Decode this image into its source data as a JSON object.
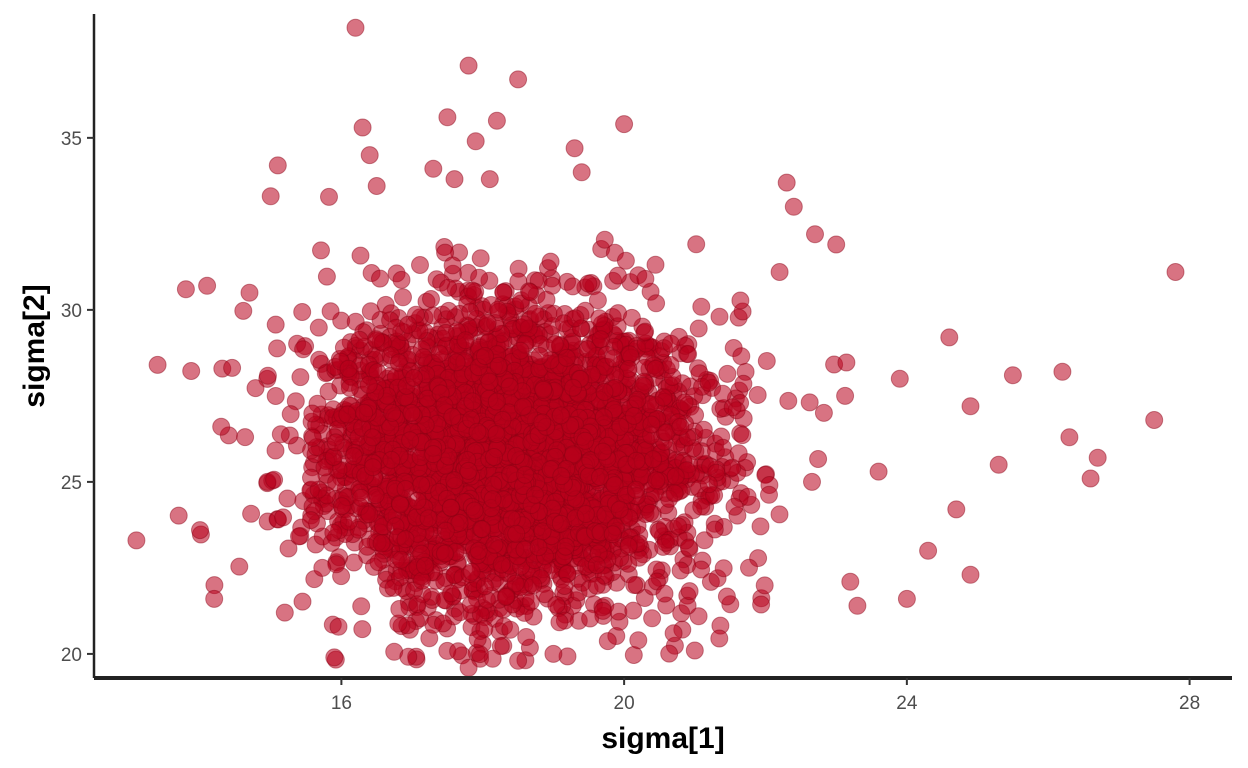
{
  "chart_data": {
    "type": "scatter",
    "title": "",
    "xlabel": "sigma[1]",
    "ylabel": "sigma[2]",
    "xlim": [
      12.5,
      28.6
    ],
    "ylim": [
      19.3,
      38.6
    ],
    "xticks": [
      16,
      20,
      24,
      28
    ],
    "yticks": [
      20,
      25,
      30,
      35
    ],
    "grid": false,
    "legend": "none",
    "point_color": "#B8001C",
    "point_opacity": 0.55,
    "series": [
      {
        "n_bulk_points": 4000,
        "bulk_center": {
          "x": 18.4,
          "y": 25.8
        },
        "bulk_sd": {
          "x": 1.3,
          "y": 2.1
        },
        "x": [
          16.2,
          17.8,
          18.5,
          17.5,
          18.2,
          20.0,
          16.3,
          19.3,
          16.4,
          15.1,
          13.1,
          13.4,
          13.8,
          14.1,
          14.2,
          14.0,
          14.7,
          15.0,
          14.3,
          15.2,
          15.9,
          17.8,
          18.5,
          19.0,
          20.7,
          21.0,
          20.2,
          22.3,
          22.4,
          22.7,
          23.0,
          22.2,
          24.6,
          24.9,
          25.5,
          26.2,
          26.3,
          26.6,
          26.7,
          27.5,
          27.8,
          25.3,
          24.7,
          24.3,
          24.9,
          24.0,
          23.9,
          23.3,
          23.2,
          23.6,
          17.9,
          16.5,
          17.3,
          17.6,
          19.4,
          18.1
        ],
        "y": [
          38.2,
          37.1,
          36.7,
          35.6,
          35.5,
          35.4,
          35.3,
          34.7,
          34.5,
          34.2,
          23.3,
          28.4,
          30.6,
          30.7,
          21.6,
          23.6,
          30.5,
          33.3,
          26.6,
          21.2,
          19.9,
          19.6,
          19.8,
          20.0,
          20.6,
          20.1,
          20.4,
          33.7,
          33.0,
          32.2,
          31.9,
          31.1,
          29.2,
          27.2,
          28.1,
          28.2,
          26.3,
          25.1,
          25.7,
          26.8,
          31.1,
          25.5,
          24.2,
          23.0,
          22.3,
          21.6,
          28.0,
          21.4,
          22.1,
          25.3,
          34.9,
          33.6,
          34.1,
          33.8,
          34.0,
          33.8
        ]
      }
    ]
  }
}
